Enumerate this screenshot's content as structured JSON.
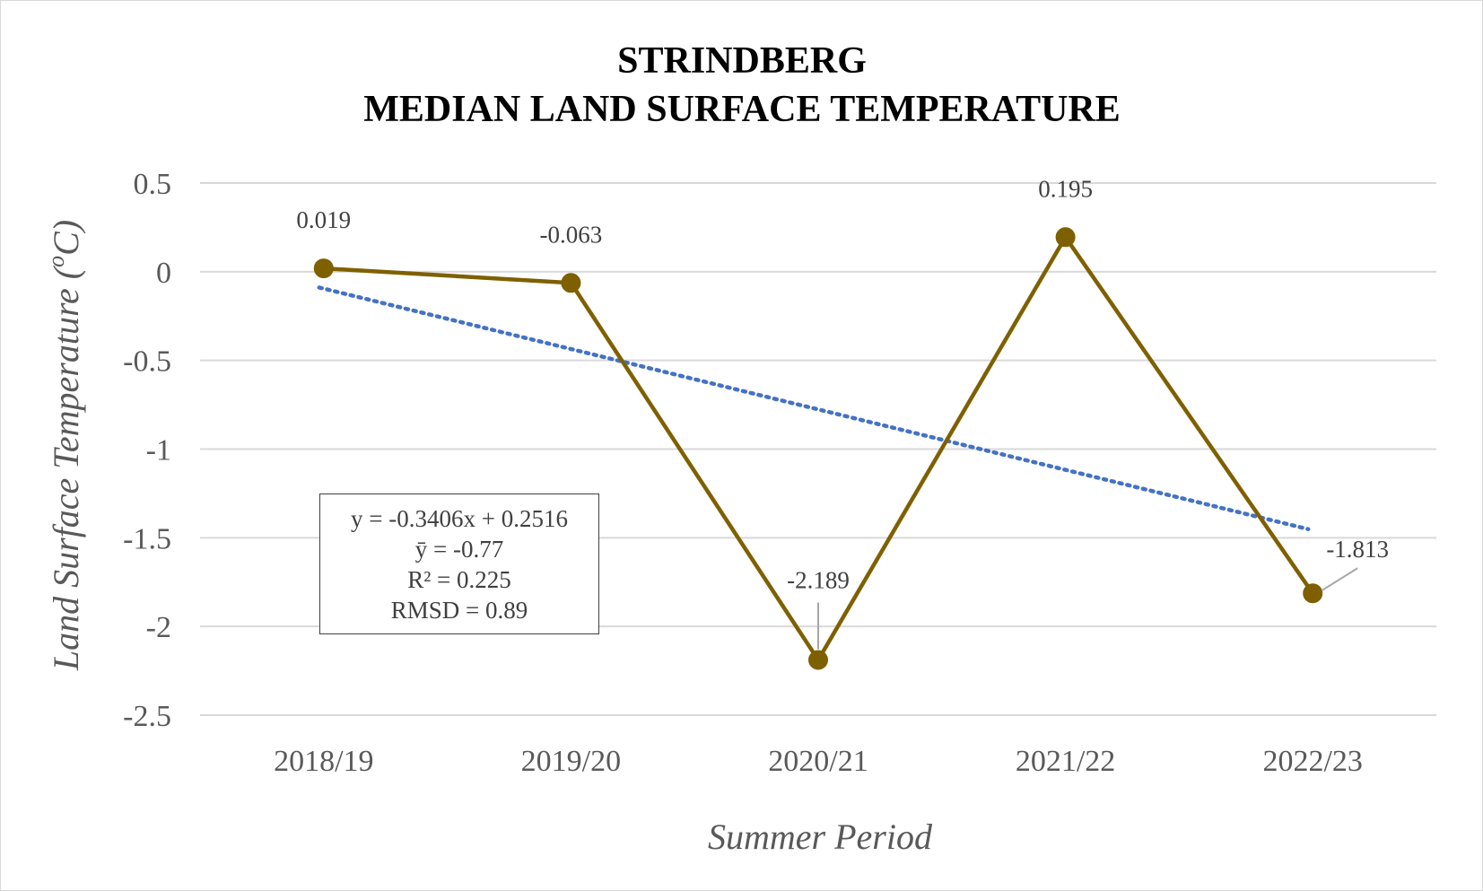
{
  "chart_data": {
    "type": "line",
    "title": [
      "STRINDBERG",
      "MEDIAN LAND SURFACE TEMPERATURE"
    ],
    "xlabel": "Summer Period",
    "ylabel": "Land Surface Temperature (",
    "ylabel_sup": "o",
    "ylabel_tail": "C)",
    "categories": [
      "2018/19",
      "2019/20",
      "2020/21",
      "2021/22",
      "2022/23"
    ],
    "ylim": [
      -2.5,
      0.5
    ],
    "yticks": [
      0.5,
      0,
      -0.5,
      -1,
      -1.5,
      -2,
      -2.5
    ],
    "ytick_labels": [
      "0.5",
      "0",
      "-0.5",
      "-1",
      "-1.5",
      "-2",
      "-2.5"
    ],
    "grid": true,
    "series": [
      {
        "values": [
          0.019,
          -0.063,
          -2.189,
          0.195,
          -1.813
        ],
        "labels": [
          "0.019",
          "-0.063",
          "-2.189",
          "0.195",
          "-1.813"
        ],
        "color": "#7f6000"
      }
    ],
    "trendline": {
      "type": "linear",
      "slope": -0.3406,
      "intercept": 0.2516,
      "style": "dotted",
      "color": "#4472c4"
    },
    "stats_box": [
      "y = -0.3406x + 0.2516",
      "ȳ = -0.77",
      "R² = 0.225",
      "RMSD = 0.89"
    ],
    "gridline_color": "#d9d9d9"
  }
}
